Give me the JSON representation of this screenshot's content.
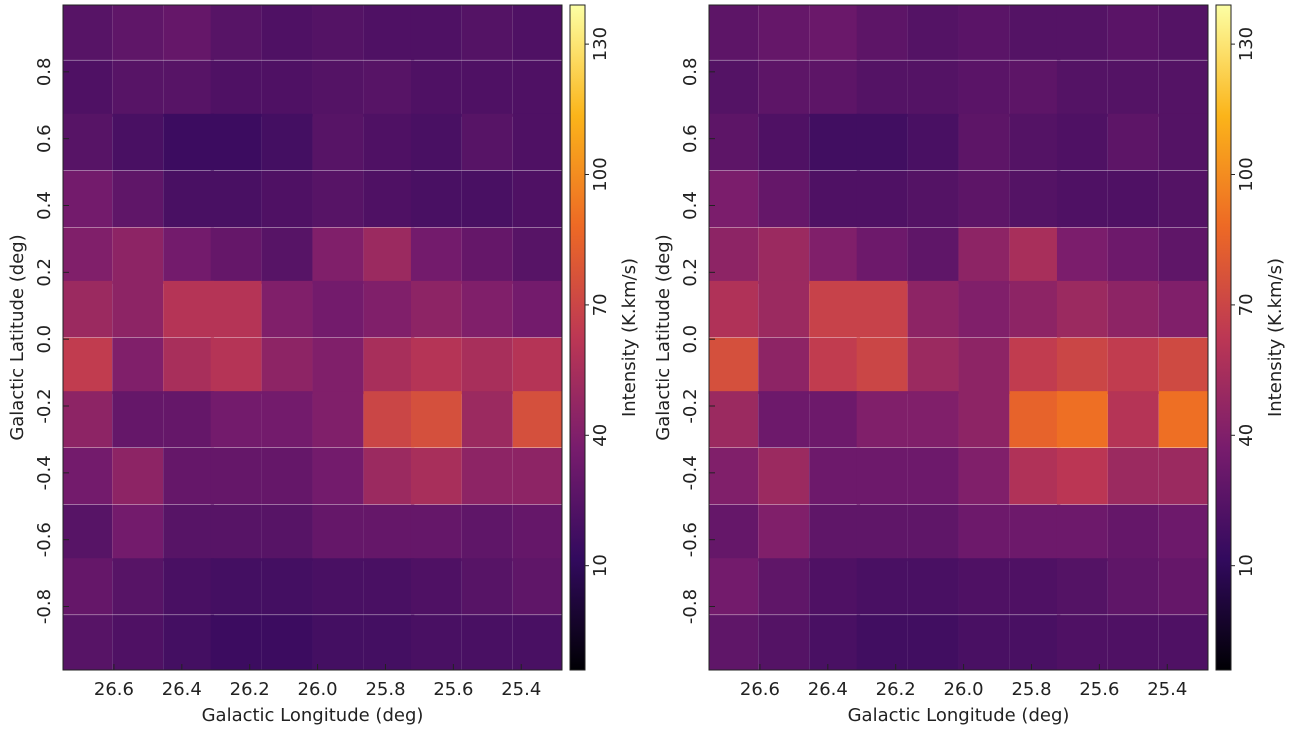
{
  "chart_data": [
    {
      "type": "heatmap",
      "xlabel": "Galactic Longitude (deg)",
      "ylabel": "Galactic Latitude (deg)",
      "colorbar_label": "Intensity (K.km/s)",
      "colormap": [
        "#000004",
        "#320a5e",
        "#781c6d",
        "#bc3754",
        "#ed6925",
        "#fbb41a",
        "#fcffa4"
      ],
      "xlim": [
        26.75,
        25.28
      ],
      "ylim": [
        -0.99,
        1.0
      ],
      "clim": [
        -14,
        139
      ],
      "xticks": [
        26.6,
        26.4,
        26.2,
        {
          "value": 26.0,
          "label": "26.0"
        },
        25.8,
        25.6,
        25.4
      ],
      "yticks": [
        -0.8,
        -0.6,
        -0.4,
        -0.2,
        {
          "value": 0,
          "label": "0.0"
        },
        0.2,
        0.4,
        0.6,
        0.8
      ],
      "cticks": [
        10,
        40,
        70,
        100,
        130
      ],
      "x": [
        26.68,
        26.53,
        26.38,
        26.24,
        26.09,
        25.94,
        25.79,
        25.65,
        25.5,
        25.35
      ],
      "y": [
        0.92,
        0.75,
        0.59,
        0.42,
        0.25,
        0.09,
        -0.08,
        -0.24,
        -0.41,
        -0.58,
        -0.74,
        -0.91
      ],
      "values": [
        [
          25,
          28,
          30,
          25,
          22,
          24,
          22,
          22,
          24,
          22
        ],
        [
          22,
          25,
          25,
          22,
          22,
          24,
          25,
          22,
          22,
          22
        ],
        [
          25,
          20,
          15,
          15,
          18,
          25,
          22,
          20,
          25,
          22
        ],
        [
          35,
          28,
          20,
          20,
          22,
          25,
          22,
          20,
          20,
          22
        ],
        [
          40,
          45,
          35,
          30,
          25,
          40,
          50,
          35,
          30,
          25
        ],
        [
          50,
          45,
          60,
          60,
          40,
          35,
          40,
          45,
          40,
          35
        ],
        [
          65,
          40,
          55,
          60,
          45,
          40,
          55,
          60,
          55,
          60
        ],
        [
          45,
          30,
          30,
          35,
          35,
          40,
          70,
          75,
          50,
          75
        ],
        [
          35,
          45,
          30,
          30,
          30,
          35,
          50,
          55,
          45,
          45
        ],
        [
          25,
          35,
          25,
          25,
          25,
          30,
          30,
          30,
          28,
          30
        ],
        [
          30,
          25,
          20,
          18,
          18,
          20,
          20,
          22,
          25,
          28
        ],
        [
          25,
          22,
          18,
          15,
          15,
          18,
          18,
          20,
          20,
          20
        ]
      ]
    },
    {
      "type": "heatmap",
      "xlabel": "Galactic Longitude (deg)",
      "ylabel": "Galactic Latitude (deg)",
      "colorbar_label": "Intensity (K.km/s)",
      "colormap": [
        "#000004",
        "#320a5e",
        "#781c6d",
        "#bc3754",
        "#ed6925",
        "#fbb41a",
        "#fcffa4"
      ],
      "xlim": [
        26.75,
        25.28
      ],
      "ylim": [
        -0.99,
        1.0
      ],
      "clim": [
        -14,
        139
      ],
      "xticks": [
        26.6,
        26.4,
        26.2,
        {
          "value": 26.0,
          "label": "26.0"
        },
        25.8,
        25.6,
        25.4
      ],
      "yticks": [
        -0.8,
        -0.6,
        -0.4,
        -0.2,
        {
          "value": 0,
          "label": "0.0"
        },
        0.2,
        0.4,
        0.6,
        0.8
      ],
      "cticks": [
        10,
        40,
        70,
        100,
        130
      ],
      "x": [
        26.68,
        26.53,
        26.38,
        26.24,
        26.09,
        25.94,
        25.79,
        25.65,
        25.5,
        25.35
      ],
      "y": [
        0.92,
        0.75,
        0.59,
        0.42,
        0.25,
        0.09,
        -0.08,
        -0.24,
        -0.41,
        -0.58,
        -0.74,
        -0.91
      ],
      "values": [
        [
          27,
          30,
          32,
          27,
          24,
          26,
          24,
          24,
          26,
          24
        ],
        [
          24,
          27,
          27,
          24,
          24,
          26,
          27,
          24,
          24,
          24
        ],
        [
          27,
          22,
          17,
          17,
          20,
          27,
          24,
          22,
          27,
          24
        ],
        [
          38,
          30,
          22,
          22,
          24,
          27,
          24,
          22,
          22,
          24
        ],
        [
          45,
          50,
          40,
          33,
          28,
          45,
          55,
          38,
          33,
          28
        ],
        [
          58,
          50,
          68,
          68,
          45,
          40,
          45,
          50,
          45,
          40
        ],
        [
          75,
          45,
          65,
          70,
          50,
          45,
          65,
          70,
          65,
          72
        ],
        [
          50,
          33,
          33,
          40,
          40,
          45,
          85,
          90,
          60,
          90
        ],
        [
          40,
          50,
          33,
          33,
          33,
          40,
          58,
          62,
          50,
          50
        ],
        [
          30,
          40,
          28,
          28,
          28,
          33,
          33,
          33,
          30,
          33
        ],
        [
          35,
          28,
          22,
          20,
          20,
          22,
          22,
          24,
          28,
          30
        ],
        [
          28,
          24,
          20,
          17,
          17,
          20,
          20,
          22,
          22,
          22
        ]
      ]
    }
  ]
}
